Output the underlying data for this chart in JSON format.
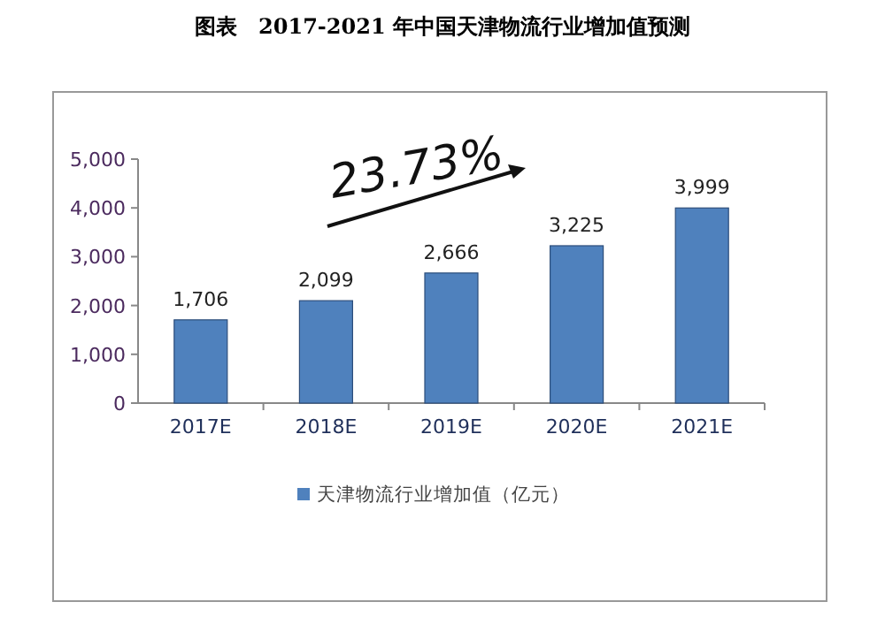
{
  "chart_data": {
    "type": "bar",
    "title": "图表　2017-2021 年中国天津物流行业增加值预测",
    "categories": [
      "2017E",
      "2018E",
      "2019E",
      "2020E",
      "2021E"
    ],
    "series": [
      {
        "name": "天津物流行业增加值（亿元）",
        "color": "#4f81bd",
        "values": [
          1706,
          2099,
          2666,
          3225,
          3999
        ],
        "value_labels": [
          "1,706",
          "2,099",
          "2,666",
          "3,225",
          "3,999"
        ]
      }
    ],
    "ylim": [
      0,
      5000
    ],
    "yticks": [
      {
        "value": 0,
        "label": "0"
      },
      {
        "value": 1000,
        "label": "1,000"
      },
      {
        "value": 2000,
        "label": "2,000"
      },
      {
        "value": 3000,
        "label": "3,000"
      },
      {
        "value": 4000,
        "label": "4,000"
      },
      {
        "value": 5000,
        "label": "5,000"
      }
    ],
    "data_labels": false,
    "grid": false,
    "legend": "bottom",
    "annotations": [
      "23.73%"
    ]
  }
}
